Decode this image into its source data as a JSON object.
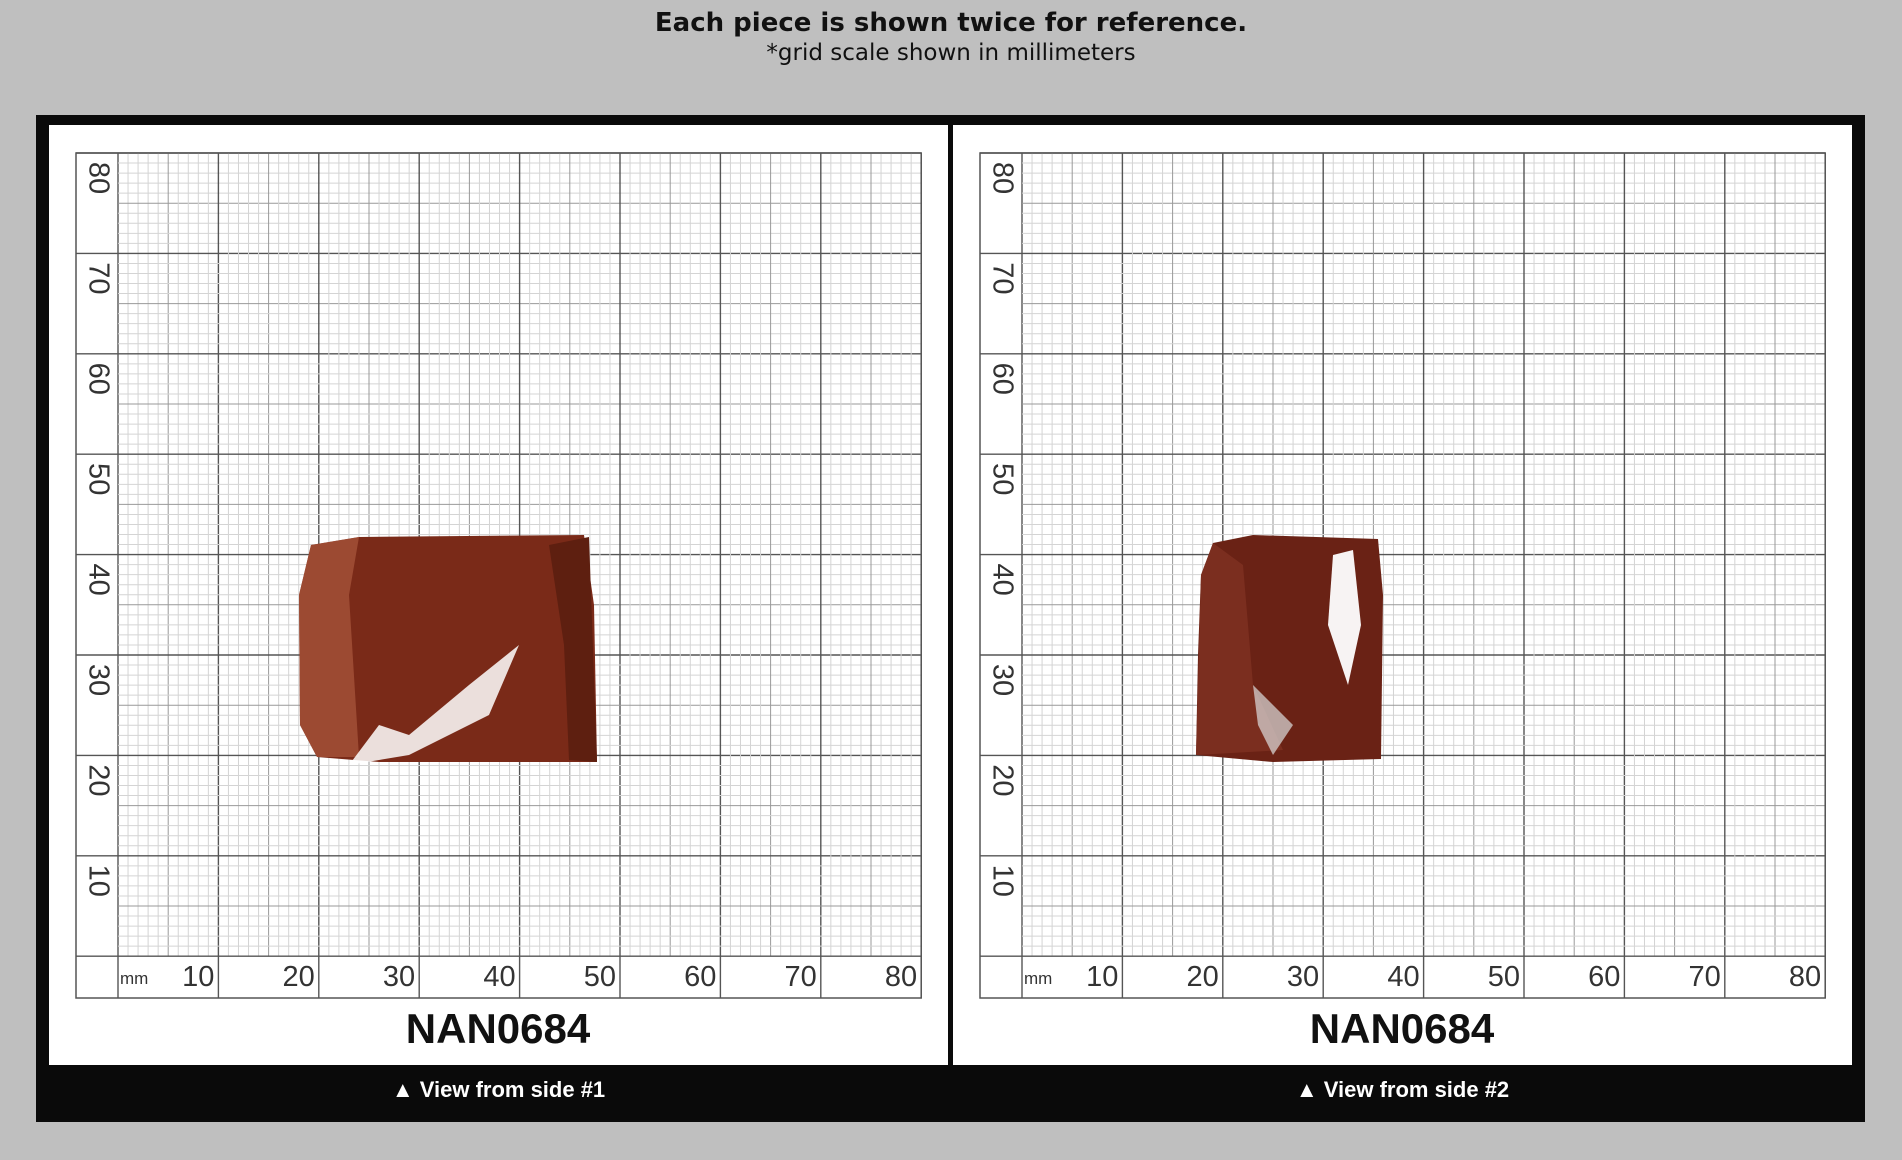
{
  "header": {
    "title": "Each piece is shown twice for reference.",
    "subtitle": "*grid scale shown in millimeters"
  },
  "grid": {
    "unit": "mm",
    "x_labels": [
      10,
      20,
      30,
      40,
      50,
      60,
      70,
      80
    ],
    "y_labels": [
      80,
      70,
      60,
      50,
      40,
      30,
      20,
      10
    ]
  },
  "panels": [
    {
      "sample_id": "NAN0684",
      "caption": "▲ View from side #1"
    },
    {
      "sample_id": "NAN0684",
      "caption": "▲ View from side #2"
    }
  ]
}
